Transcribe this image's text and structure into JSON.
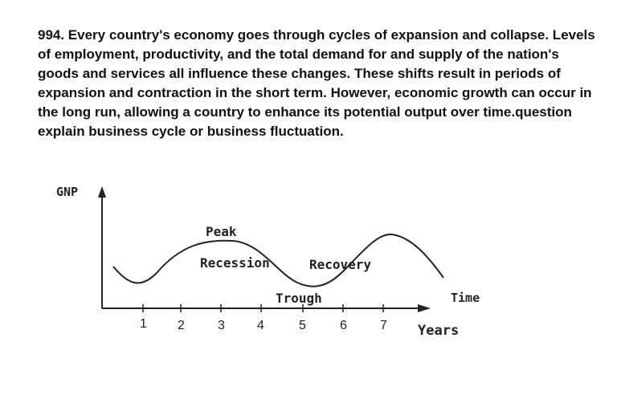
{
  "question": {
    "text": "994. Every country's economy goes through cycles of expansion and collapse. Levels of employment, productivity, and the total demand for and supply of the nation's goods and services all influence these changes. These shifts result in periods of expansion and contraction in the short term. However, economic growth can occur in the long run, allowing a country to enhance its potential output over time.question explain business cycle or business fluctuation."
  },
  "diagram": {
    "y_axis_label": "GNP",
    "x_axis_label": "Time",
    "x_unit_label": "Years",
    "peak_label": "Peak",
    "recession_label": "Recession",
    "recovery_label": "Recovery",
    "trough_label": "Trough",
    "ticks": [
      "1",
      "2",
      "3",
      "4",
      "5",
      "6",
      "7"
    ]
  }
}
